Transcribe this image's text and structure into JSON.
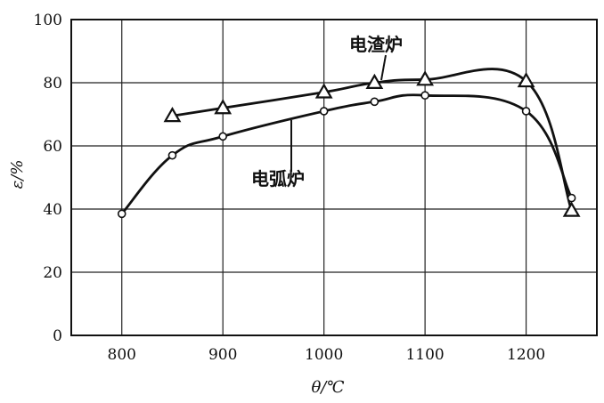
{
  "chart_data": {
    "type": "line",
    "xlabel": "θ/℃",
    "ylabel": "ε/%",
    "xlim": [
      750,
      1270
    ],
    "ylim": [
      0,
      100
    ],
    "x_ticks": [
      "800",
      "900",
      "1000",
      "1100",
      "1200"
    ],
    "y_ticks": [
      "0",
      "20",
      "40",
      "60",
      "80",
      "100"
    ],
    "grid": true,
    "series": [
      {
        "name": "电渣炉",
        "marker": "triangle",
        "x": [
          850,
          900,
          1000,
          1050,
          1100,
          1200,
          1245
        ],
        "y": [
          69.5,
          72,
          77,
          80,
          81,
          80.5,
          39.5
        ]
      },
      {
        "name": "电弧炉",
        "marker": "circle",
        "x": [
          800,
          850,
          900,
          1000,
          1050,
          1100,
          1200,
          1245
        ],
        "y": [
          38.5,
          57,
          63,
          71,
          74,
          76,
          71,
          43.5
        ]
      }
    ]
  }
}
